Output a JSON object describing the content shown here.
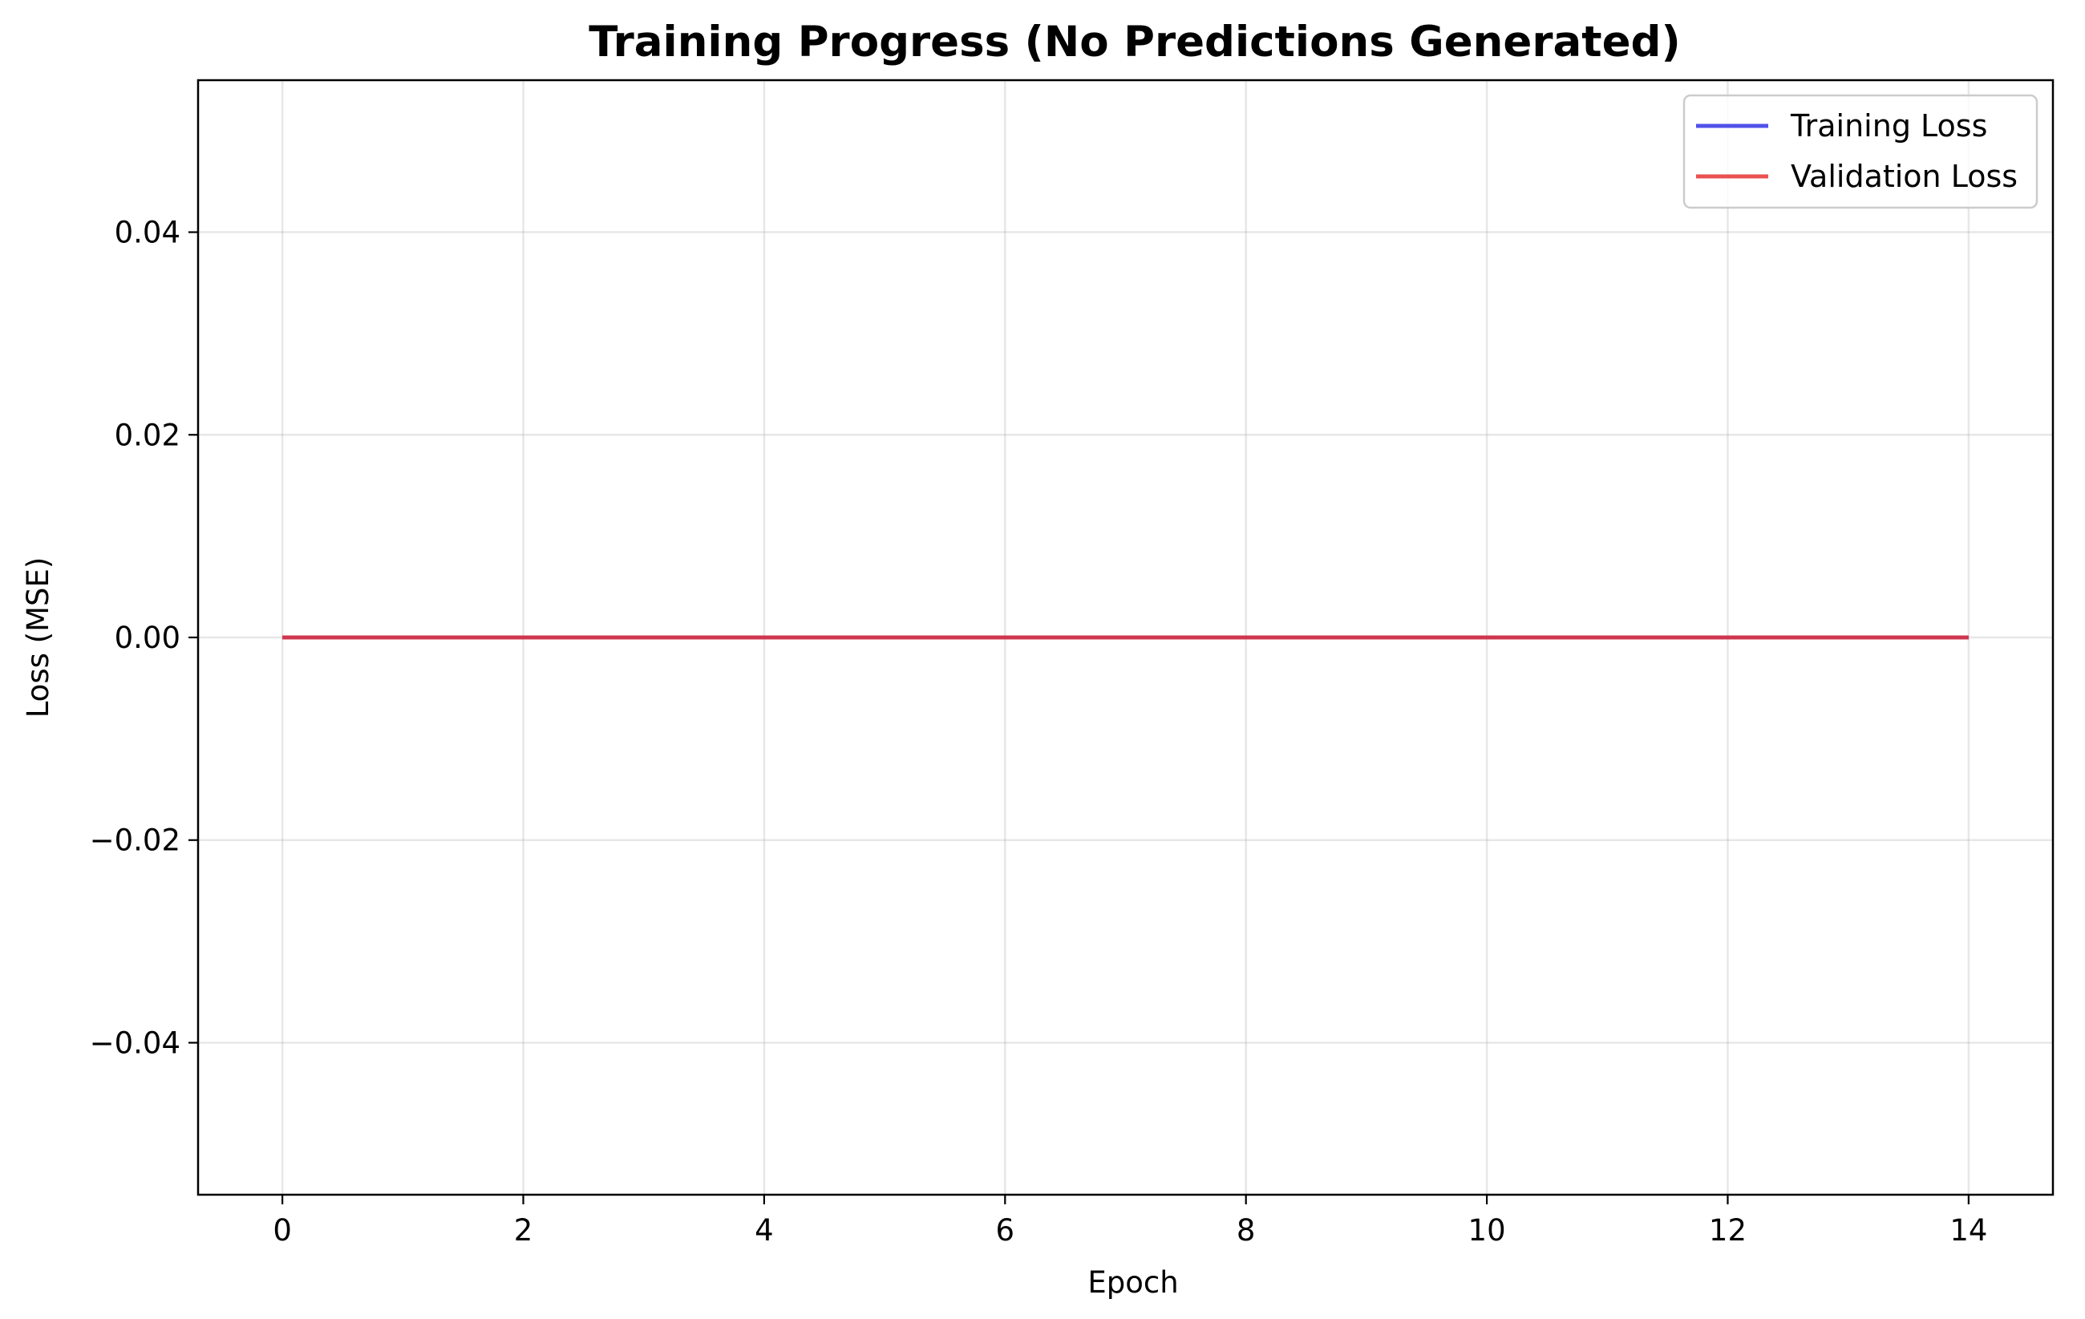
{
  "chart_data": {
    "type": "line",
    "title": "Training Progress (No Predictions Generated)",
    "xlabel": "Epoch",
    "ylabel": "Loss (MSE)",
    "xlim": [
      -0.7,
      14.7
    ],
    "ylim": [
      -0.055,
      0.055
    ],
    "xticks": [
      0,
      2,
      4,
      6,
      8,
      10,
      12,
      14
    ],
    "xtick_labels": [
      "0",
      "2",
      "4",
      "6",
      "8",
      "10",
      "12",
      "14"
    ],
    "yticks": [
      0.04,
      0.02,
      0.0,
      -0.02,
      -0.04
    ],
    "ytick_labels": [
      "0.04",
      "0.02",
      "0.00",
      "−0.02",
      "−0.04"
    ],
    "grid": true,
    "legend_position": "top-right",
    "x": [
      0,
      1,
      2,
      3,
      4,
      5,
      6,
      7,
      8,
      9,
      10,
      11,
      12,
      13,
      14
    ],
    "series": [
      {
        "name": "Training Loss",
        "color": "#3333e6",
        "values": [
          0,
          0,
          0,
          0,
          0,
          0,
          0,
          0,
          0,
          0,
          0,
          0,
          0,
          0,
          0
        ]
      },
      {
        "name": "Validation Loss",
        "color": "#e63333",
        "values": [
          0,
          0,
          0,
          0,
          0,
          0,
          0,
          0,
          0,
          0,
          0,
          0,
          0,
          0,
          0
        ]
      }
    ]
  }
}
